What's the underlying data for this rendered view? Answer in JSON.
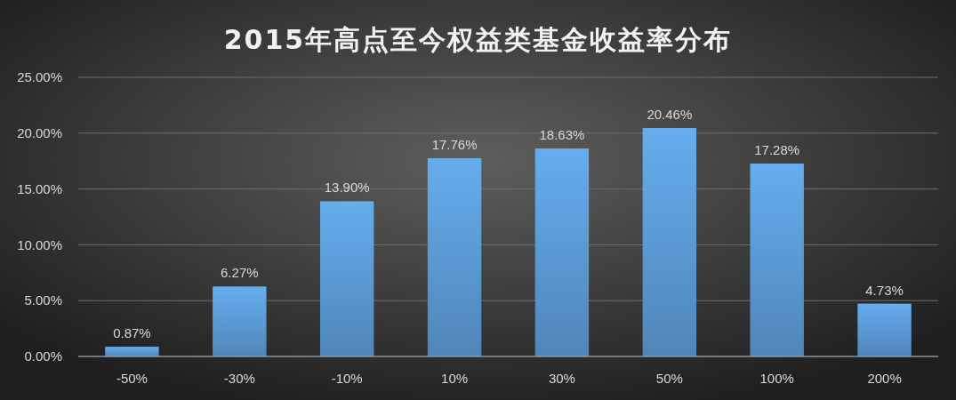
{
  "chart_data": {
    "type": "bar",
    "title": "2015年高点至今权益类基金收益率分布",
    "categories": [
      "-50%",
      "-30%",
      "-10%",
      "10%",
      "30%",
      "50%",
      "100%",
      "200%"
    ],
    "values": [
      0.87,
      6.27,
      13.9,
      17.76,
      18.63,
      20.46,
      17.28,
      4.73
    ],
    "value_labels": [
      "0.87%",
      "6.27%",
      "13.90%",
      "17.76%",
      "18.63%",
      "20.46%",
      "17.28%",
      "4.73%"
    ],
    "color": "#5b9bd5",
    "ylim": [
      0,
      25
    ],
    "yticks": [
      {
        "value": 0,
        "label": "0.00%"
      },
      {
        "value": 5,
        "label": "5.00%"
      },
      {
        "value": 10,
        "label": "10.00%"
      },
      {
        "value": 15,
        "label": "15.00%"
      },
      {
        "value": 20,
        "label": "20.00%"
      },
      {
        "value": 25,
        "label": "25.00%"
      }
    ],
    "grid": "y"
  }
}
